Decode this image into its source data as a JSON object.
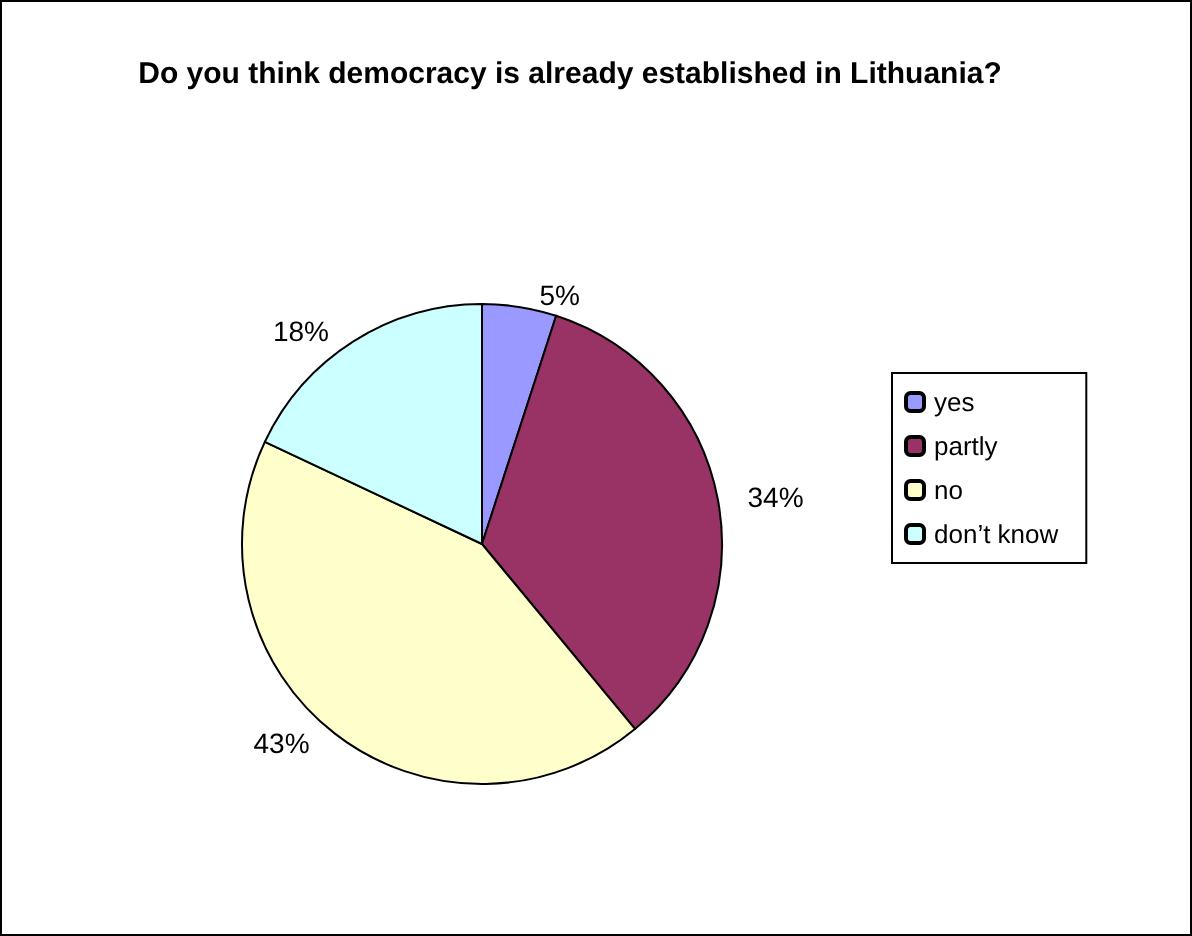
{
  "chart_data": {
    "type": "pie",
    "title": "Do you think democracy is already established in Lithuania?",
    "categories": [
      "yes",
      "partly",
      "no",
      "don’t know"
    ],
    "values": [
      5,
      34,
      43,
      18
    ],
    "value_labels": [
      "5%",
      "34%",
      "43%",
      "18%"
    ],
    "colors": [
      "#9999ff",
      "#993366",
      "#ffffcc",
      "#ccffff"
    ],
    "legend": "right"
  }
}
